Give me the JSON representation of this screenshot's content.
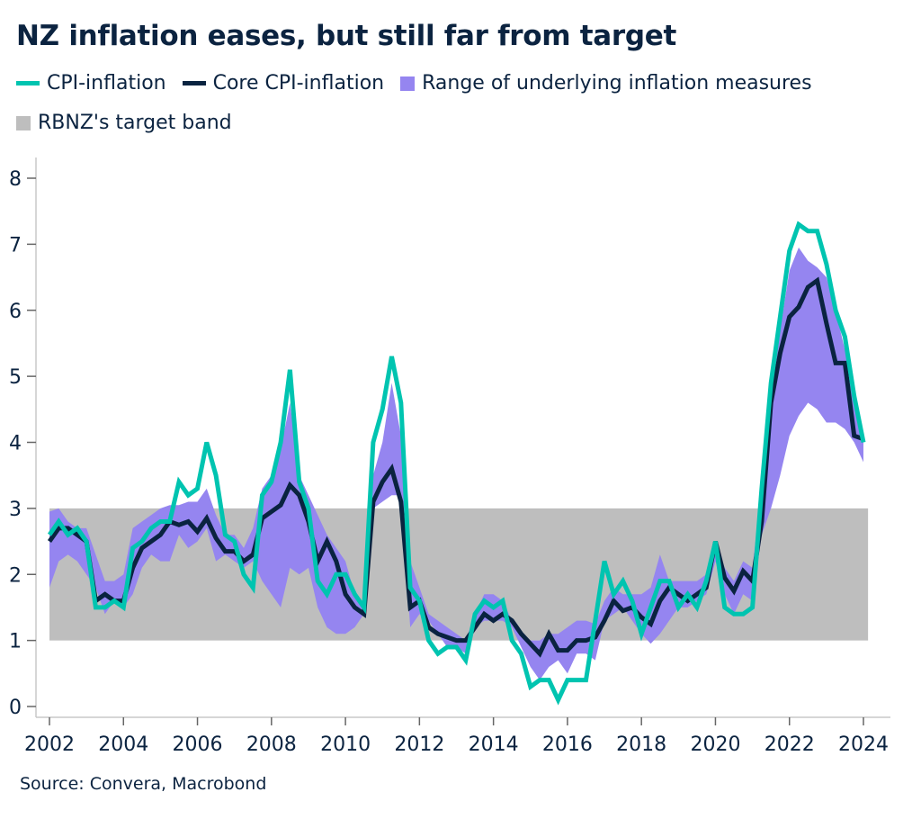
{
  "chart_data": {
    "type": "line",
    "title": "NZ inflation eases, but still far from target",
    "xlabel": "",
    "ylabel": "",
    "xlim": [
      2002,
      2024.25
    ],
    "ylim": [
      0,
      8
    ],
    "x_start": "2002Q1",
    "frequency": "quarterly",
    "x_ticks": [
      "2002",
      "2004",
      "2006",
      "2008",
      "2010",
      "2012",
      "2014",
      "2016",
      "2018",
      "2020",
      "2022",
      "2024"
    ],
    "y_ticks": [
      "0",
      "1",
      "2",
      "3",
      "4",
      "5",
      "6",
      "7",
      "8"
    ],
    "grid": false,
    "legend_placement": "top",
    "target_band": {
      "name": "RBNZ's target band",
      "low": 1,
      "high": 3,
      "color": "#bebebe"
    },
    "series": [
      {
        "name": "CPI-inflation",
        "color": "#00c4b0",
        "values": [
          2.6,
          2.8,
          2.6,
          2.7,
          2.5,
          1.5,
          1.5,
          1.6,
          1.5,
          2.4,
          2.5,
          2.7,
          2.8,
          2.8,
          3.4,
          3.2,
          3.3,
          4.0,
          3.5,
          2.6,
          2.5,
          2.0,
          1.8,
          3.2,
          3.4,
          4.0,
          5.1,
          3.4,
          3.0,
          1.9,
          1.7,
          2.0,
          2.0,
          1.7,
          1.5,
          4.0,
          4.5,
          5.3,
          4.6,
          1.8,
          1.6,
          1.0,
          0.8,
          0.9,
          0.9,
          0.7,
          1.4,
          1.6,
          1.5,
          1.6,
          1.0,
          0.8,
          0.3,
          0.4,
          0.4,
          0.1,
          0.4,
          0.4,
          0.4,
          1.3,
          2.2,
          1.7,
          1.9,
          1.6,
          1.1,
          1.5,
          1.9,
          1.9,
          1.5,
          1.7,
          1.5,
          1.9,
          2.5,
          1.5,
          1.4,
          1.4,
          1.5,
          3.3,
          4.9,
          5.9,
          6.9,
          7.3,
          7.2,
          7.2,
          6.7,
          6.0,
          5.6,
          4.7,
          4.0
        ]
      },
      {
        "name": "Core CPI-inflation",
        "color": "#0a2340",
        "values": [
          2.5,
          2.7,
          2.7,
          2.6,
          2.5,
          1.6,
          1.7,
          1.6,
          1.6,
          2.1,
          2.4,
          2.5,
          2.6,
          2.8,
          2.75,
          2.8,
          2.65,
          2.85,
          2.55,
          2.35,
          2.35,
          2.2,
          2.3,
          2.85,
          2.95,
          3.05,
          3.35,
          3.2,
          2.8,
          2.2,
          2.5,
          2.2,
          1.7,
          1.5,
          1.4,
          3.1,
          3.4,
          3.6,
          3.1,
          1.5,
          1.6,
          1.2,
          1.1,
          1.05,
          1.0,
          1.0,
          1.2,
          1.4,
          1.3,
          1.4,
          1.3,
          1.1,
          0.95,
          0.8,
          1.1,
          0.85,
          0.85,
          1.0,
          1.0,
          1.05,
          1.3,
          1.6,
          1.45,
          1.5,
          1.35,
          1.25,
          1.6,
          1.8,
          1.7,
          1.6,
          1.7,
          1.8,
          2.5,
          1.95,
          1.75,
          2.05,
          1.9,
          2.8,
          4.6,
          5.35,
          5.9,
          6.05,
          6.35,
          6.45,
          5.8,
          5.2,
          5.2,
          4.1,
          4.05
        ]
      },
      {
        "name": "Range of underlying inflation measures",
        "type": "range",
        "color": "#9585f0",
        "low": [
          1.8,
          2.2,
          2.3,
          2.2,
          2.0,
          1.8,
          1.4,
          1.6,
          1.5,
          1.7,
          2.1,
          2.3,
          2.2,
          2.2,
          2.6,
          2.4,
          2.5,
          2.7,
          2.2,
          2.3,
          2.2,
          2.1,
          2.2,
          1.9,
          1.7,
          1.5,
          2.1,
          2.0,
          2.1,
          1.5,
          1.2,
          1.1,
          1.1,
          1.2,
          1.4,
          3.0,
          3.1,
          3.2,
          3.2,
          1.2,
          1.4,
          1.3,
          1.1,
          0.9,
          0.9,
          0.8,
          1.2,
          1.3,
          1.3,
          1.3,
          1.2,
          0.9,
          0.6,
          0.4,
          0.6,
          0.7,
          0.5,
          0.8,
          0.8,
          0.7,
          1.3,
          1.4,
          1.5,
          1.3,
          1.1,
          0.95,
          1.1,
          1.3,
          1.5,
          1.5,
          1.6,
          1.7,
          2.2,
          1.7,
          1.4,
          1.7,
          1.6,
          2.6,
          3.0,
          3.5,
          4.1,
          4.4,
          4.6,
          4.5,
          4.3,
          4.3,
          4.2,
          4.0,
          3.7
        ],
        "high": [
          2.95,
          3.0,
          2.8,
          2.7,
          2.7,
          2.3,
          1.9,
          1.9,
          2.0,
          2.7,
          2.8,
          2.9,
          3.0,
          3.05,
          3.05,
          3.1,
          3.1,
          3.3,
          2.9,
          2.6,
          2.6,
          2.4,
          2.7,
          3.3,
          3.5,
          3.9,
          4.6,
          3.5,
          3.2,
          2.9,
          2.6,
          2.4,
          2.2,
          1.7,
          1.5,
          3.5,
          4.0,
          4.9,
          4.1,
          2.2,
          1.8,
          1.4,
          1.3,
          1.2,
          1.1,
          1.0,
          1.4,
          1.7,
          1.7,
          1.6,
          1.3,
          1.1,
          1.0,
          1.0,
          1.1,
          1.1,
          1.2,
          1.3,
          1.3,
          1.25,
          1.6,
          1.8,
          1.7,
          1.7,
          1.7,
          1.8,
          2.3,
          1.9,
          1.9,
          1.9,
          1.9,
          2.0,
          2.5,
          2.1,
          1.9,
          2.2,
          2.1,
          3.3,
          4.8,
          5.7,
          6.6,
          6.95,
          6.75,
          6.65,
          6.5,
          6.0,
          5.4,
          4.6,
          4.1
        ]
      }
    ],
    "source": "Source: Convera, Macrobond"
  }
}
